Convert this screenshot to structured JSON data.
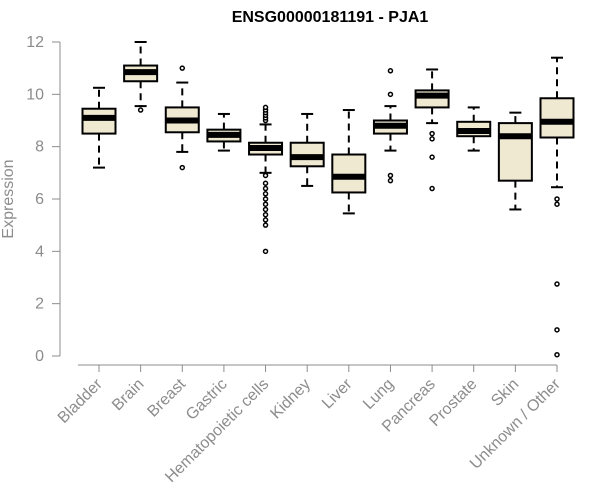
{
  "chart_data": {
    "type": "box",
    "title": "ENSG00000181191 - PJA1",
    "ylabel": "Expression",
    "xlabel": "",
    "ylim": [
      0,
      12
    ],
    "yticks": [
      0,
      2,
      4,
      6,
      8,
      10,
      12
    ],
    "categories": [
      "Bladder",
      "Brain",
      "Breast",
      "Gastric",
      "Hematopoietic cells",
      "Kidney",
      "Liver",
      "Lung",
      "Pancreas",
      "Prostate",
      "Skin",
      "Unknown / Other"
    ],
    "boxes": [
      {
        "whisker_low": 7.2,
        "q1": 8.5,
        "median": 9.1,
        "q3": 9.45,
        "whisker_high": 10.25,
        "outliers": []
      },
      {
        "whisker_low": 9.55,
        "q1": 10.5,
        "median": 10.85,
        "q3": 11.1,
        "whisker_high": 12.0,
        "outliers": [
          9.4
        ]
      },
      {
        "whisker_low": 7.8,
        "q1": 8.55,
        "median": 9.0,
        "q3": 9.5,
        "whisker_high": 10.45,
        "outliers": [
          7.2,
          11.0
        ]
      },
      {
        "whisker_low": 7.85,
        "q1": 8.2,
        "median": 8.45,
        "q3": 8.65,
        "whisker_high": 9.25,
        "outliers": []
      },
      {
        "whisker_low": 7.0,
        "q1": 7.7,
        "median": 7.95,
        "q3": 8.15,
        "whisker_high": 8.85,
        "outliers": [
          4.0,
          5.0,
          5.2,
          5.4,
          5.6,
          5.8,
          6.0,
          6.2,
          6.4,
          6.6,
          6.9,
          9.0,
          9.1,
          9.2,
          9.3,
          9.4,
          9.5
        ]
      },
      {
        "whisker_low": 6.5,
        "q1": 7.25,
        "median": 7.6,
        "q3": 8.15,
        "whisker_high": 9.25,
        "outliers": []
      },
      {
        "whisker_low": 5.45,
        "q1": 6.25,
        "median": 6.85,
        "q3": 7.7,
        "whisker_high": 9.4,
        "outliers": []
      },
      {
        "whisker_low": 7.85,
        "q1": 8.5,
        "median": 8.8,
        "q3": 9.0,
        "whisker_high": 9.55,
        "outliers": [
          6.7,
          6.9,
          10.0,
          10.9
        ]
      },
      {
        "whisker_low": 8.9,
        "q1": 9.5,
        "median": 9.95,
        "q3": 10.15,
        "whisker_high": 10.95,
        "outliers": [
          6.4,
          7.6,
          8.3,
          8.5
        ]
      },
      {
        "whisker_low": 7.85,
        "q1": 8.4,
        "median": 8.6,
        "q3": 8.95,
        "whisker_high": 9.5,
        "outliers": []
      },
      {
        "whisker_low": 5.6,
        "q1": 6.7,
        "median": 8.4,
        "q3": 8.9,
        "whisker_high": 9.3,
        "outliers": []
      },
      {
        "whisker_low": 6.45,
        "q1": 8.35,
        "median": 8.95,
        "q3": 9.85,
        "whisker_high": 11.4,
        "outliers": [
          0.05,
          1.0,
          2.75,
          5.8,
          6.0
        ]
      }
    ],
    "colors": {
      "box_fill": "#efe9d2",
      "box_stroke": "#000000",
      "median": "#000000",
      "axis": "#8c8c8c",
      "title": "#000000"
    }
  }
}
